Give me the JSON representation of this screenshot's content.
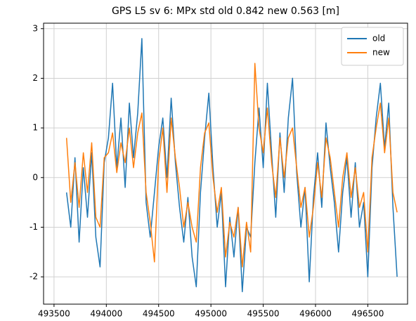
{
  "chart_data": {
    "type": "line",
    "title": "GPS L5 sv 6: MPx std old 0.842 new 0.563 [m]",
    "x": [
      493620,
      493660,
      493700,
      493740,
      493780,
      493820,
      493860,
      493900,
      493940,
      493980,
      494020,
      494060,
      494100,
      494140,
      494180,
      494220,
      494260,
      494300,
      494340,
      494380,
      494420,
      494460,
      494500,
      494540,
      494580,
      494620,
      494660,
      494700,
      494740,
      494780,
      494820,
      494860,
      494900,
      494940,
      494980,
      495020,
      495060,
      495100,
      495140,
      495180,
      495220,
      495260,
      495300,
      495340,
      495380,
      495420,
      495460,
      495500,
      495540,
      495580,
      495620,
      495660,
      495700,
      495740,
      495780,
      495820,
      495860,
      495900,
      495940,
      495980,
      496020,
      496060,
      496100,
      496140,
      496180,
      496220,
      496260,
      496300,
      496340,
      496380,
      496420,
      496460,
      496500,
      496540,
      496580,
      496620,
      496660,
      496700,
      496740,
      496780
    ],
    "series": [
      {
        "name": "old",
        "color": "#1f77b4",
        "values": [
          -0.3,
          -1.0,
          0.4,
          -1.3,
          0.2,
          -0.8,
          0.5,
          -1.2,
          -1.8,
          0.3,
          0.8,
          1.9,
          0.2,
          1.2,
          -0.2,
          1.5,
          0.4,
          1.3,
          2.8,
          -0.5,
          -1.2,
          -0.3,
          0.6,
          1.2,
          0.0,
          1.6,
          0.3,
          -0.6,
          -1.3,
          -0.4,
          -1.6,
          -2.2,
          -0.3,
          0.8,
          1.7,
          0.2,
          -1.0,
          -0.3,
          -2.2,
          -0.8,
          -1.6,
          -0.6,
          -2.3,
          -1.0,
          -1.2,
          0.3,
          1.4,
          0.2,
          1.9,
          0.5,
          -0.8,
          0.9,
          -0.3,
          1.2,
          2.0,
          0.1,
          -1.0,
          -0.2,
          -2.1,
          -0.4,
          0.5,
          -0.6,
          1.1,
          0.2,
          -0.5,
          -1.5,
          -0.3,
          0.4,
          -0.8,
          0.3,
          -1.0,
          -0.5,
          -2.0,
          0.2,
          1.2,
          1.9,
          0.6,
          1.5,
          -0.6,
          -2.0
        ]
      },
      {
        "name": "new",
        "color": "#ff7f0e",
        "values": [
          0.8,
          -0.5,
          0.3,
          -0.6,
          0.5,
          -0.3,
          0.7,
          -0.8,
          -1.0,
          0.4,
          0.5,
          0.9,
          0.1,
          0.7,
          0.3,
          1.0,
          0.2,
          0.9,
          1.3,
          -0.3,
          -0.9,
          -1.7,
          0.3,
          1.0,
          -0.3,
          1.2,
          0.4,
          -0.2,
          -1.0,
          -0.5,
          -1.0,
          -1.3,
          0.2,
          0.9,
          1.1,
          0.0,
          -0.7,
          -0.2,
          -1.6,
          -0.9,
          -1.2,
          -0.6,
          -1.8,
          -0.9,
          -1.5,
          2.3,
          1.0,
          0.5,
          1.4,
          0.3,
          -0.4,
          0.8,
          0.0,
          0.8,
          1.0,
          0.2,
          -0.6,
          -0.2,
          -1.2,
          -0.6,
          0.3,
          -0.4,
          0.8,
          0.4,
          -0.3,
          -1.0,
          0.0,
          0.5,
          -0.4,
          0.2,
          -0.6,
          -0.3,
          -1.5,
          0.4,
          1.0,
          1.5,
          0.5,
          1.2,
          -0.3,
          -0.7
        ]
      }
    ],
    "xlim": [
      493400,
      496880
    ],
    "ylim": [
      -2.55,
      3.11
    ],
    "xticks": [
      493500,
      494000,
      494500,
      495000,
      495500,
      496000,
      496500
    ],
    "yticks": [
      -2,
      -1,
      0,
      1,
      2,
      3
    ],
    "grid": true,
    "legend": "upper right"
  }
}
